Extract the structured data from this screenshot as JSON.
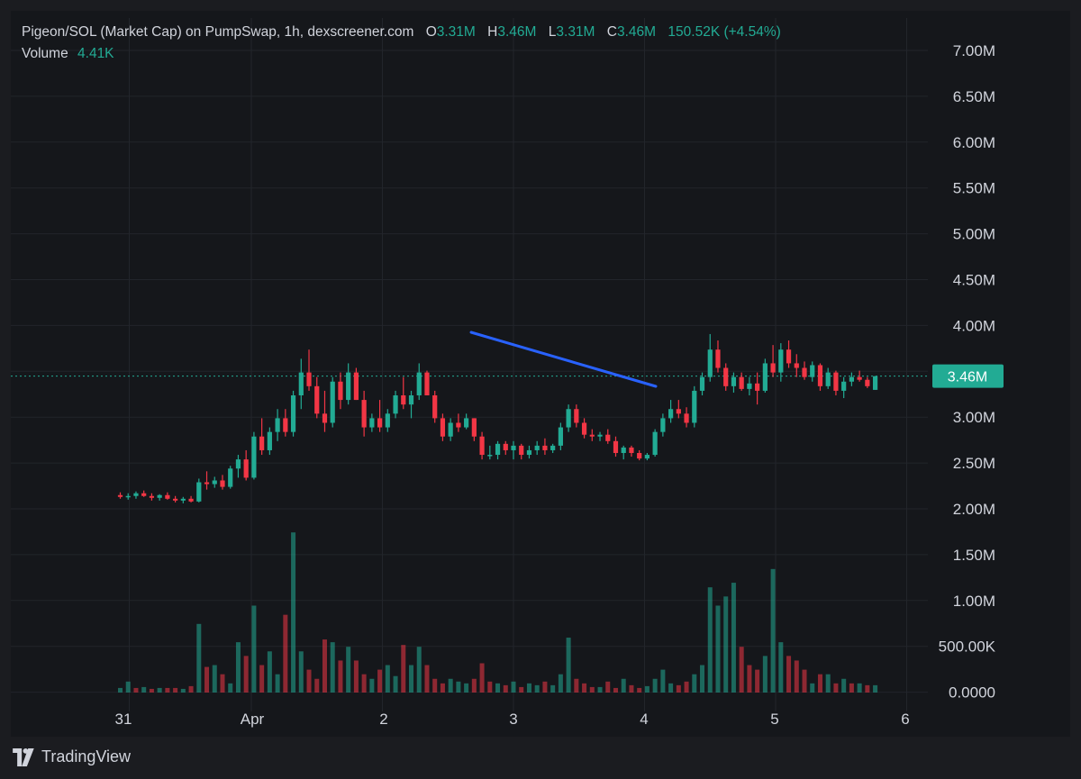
{
  "header": {
    "title": "Pigeon/SOL (Market Cap) on PumpSwap, 1h, dexscreener.com",
    "open_label": "O",
    "open_value": "3.31M",
    "high_label": "H",
    "high_value": "3.46M",
    "low_label": "L",
    "low_value": "3.31M",
    "close_label": "C",
    "close_value": "3.46M",
    "change": "150.52K (+4.54%)",
    "volume_label": "Volume",
    "volume_value": "4.41K"
  },
  "colors": {
    "up": "#22ab94",
    "down": "#f23645",
    "trendline": "#2962ff",
    "background": "#15171b"
  },
  "price_badge": "3.46M",
  "brand": {
    "name": "TradingView",
    "icon": "tradingview-logo-icon"
  },
  "chart_data": {
    "type": "candlestick",
    "title": "Pigeon/SOL (Market Cap) on PumpSwap, 1h, dexscreener.com",
    "price_axis": {
      "ticks": [
        "7.00M",
        "6.50M",
        "6.00M",
        "5.50M",
        "5.00M",
        "4.50M",
        "4.00M",
        "3.50M",
        "3.00M",
        "2.50M",
        "2.00M",
        "1.50M",
        "1.00M",
        "500.00K",
        "0.0000"
      ],
      "price_range_millions": [
        2.0,
        7.0
      ]
    },
    "time_axis": {
      "ticks": [
        "31",
        "Apr",
        "2",
        "3",
        "4",
        "5",
        "6"
      ],
      "range_days": [
        -1.2,
        6.5
      ]
    },
    "last_price_millions": 3.46,
    "trendline": {
      "from": {
        "t": 2.68,
        "price": 3.92
      },
      "to": {
        "t": 4.1,
        "price": 3.33
      }
    },
    "volume_ylim_millions": [
      0,
      3.5
    ],
    "candles": [
      [
        -1.0,
        2.16,
        2.19,
        2.12,
        2.14
      ],
      [
        -0.94,
        2.14,
        2.18,
        2.11,
        2.15
      ],
      [
        -0.88,
        2.15,
        2.2,
        2.12,
        2.18
      ],
      [
        -0.82,
        2.18,
        2.21,
        2.14,
        2.15
      ],
      [
        -0.76,
        2.15,
        2.18,
        2.1,
        2.13
      ],
      [
        -0.7,
        2.13,
        2.17,
        2.1,
        2.16
      ],
      [
        -0.64,
        2.16,
        2.19,
        2.11,
        2.12
      ],
      [
        -0.58,
        2.12,
        2.15,
        2.08,
        2.1
      ],
      [
        -0.52,
        2.1,
        2.14,
        2.07,
        2.12
      ],
      [
        -0.46,
        2.12,
        2.15,
        2.08,
        2.09
      ],
      [
        -0.4,
        2.09,
        2.34,
        2.08,
        2.3
      ],
      [
        -0.34,
        2.3,
        2.42,
        2.22,
        2.28
      ],
      [
        -0.28,
        2.28,
        2.36,
        2.24,
        2.32
      ],
      [
        -0.22,
        2.32,
        2.38,
        2.22,
        2.25
      ],
      [
        -0.16,
        2.25,
        2.48,
        2.23,
        2.45
      ],
      [
        -0.1,
        2.45,
        2.6,
        2.35,
        2.55
      ],
      [
        -0.04,
        2.55,
        2.65,
        2.32,
        2.35
      ],
      [
        0.02,
        2.35,
        2.85,
        2.33,
        2.8
      ],
      [
        0.08,
        2.8,
        3.0,
        2.6,
        2.65
      ],
      [
        0.14,
        2.65,
        2.9,
        2.6,
        2.85
      ],
      [
        0.2,
        2.85,
        3.1,
        2.75,
        3.0
      ],
      [
        0.26,
        3.0,
        3.1,
        2.8,
        2.85
      ],
      [
        0.32,
        2.85,
        3.3,
        2.8,
        3.25
      ],
      [
        0.38,
        3.25,
        3.65,
        3.1,
        3.5
      ],
      [
        0.44,
        3.5,
        3.75,
        3.3,
        3.35
      ],
      [
        0.5,
        3.35,
        3.45,
        3.0,
        3.05
      ],
      [
        0.56,
        3.05,
        3.3,
        2.85,
        2.95
      ],
      [
        0.62,
        2.95,
        3.45,
        2.9,
        3.4
      ],
      [
        0.68,
        3.4,
        3.5,
        3.1,
        3.2
      ],
      [
        0.74,
        3.2,
        3.6,
        3.15,
        3.5
      ],
      [
        0.8,
        3.5,
        3.55,
        3.2,
        3.2
      ],
      [
        0.86,
        3.2,
        3.3,
        2.8,
        2.9
      ],
      [
        0.92,
        2.9,
        3.05,
        2.85,
        3.0
      ],
      [
        0.98,
        3.0,
        3.2,
        2.85,
        2.9
      ],
      [
        1.04,
        2.9,
        3.1,
        2.85,
        3.05
      ],
      [
        1.1,
        3.05,
        3.3,
        3.0,
        3.25
      ],
      [
        1.16,
        3.25,
        3.45,
        3.1,
        3.15
      ],
      [
        1.22,
        3.15,
        3.3,
        3.0,
        3.25
      ],
      [
        1.28,
        3.25,
        3.6,
        3.2,
        3.5
      ],
      [
        1.34,
        3.5,
        3.52,
        3.25,
        3.25
      ],
      [
        1.4,
        3.25,
        3.3,
        2.95,
        3.0
      ],
      [
        1.46,
        3.0,
        3.05,
        2.75,
        2.8
      ],
      [
        1.52,
        2.8,
        3.0,
        2.75,
        2.95
      ],
      [
        1.58,
        2.95,
        3.05,
        2.85,
        2.9
      ],
      [
        1.64,
        2.9,
        3.05,
        2.88,
        3.0
      ],
      [
        1.7,
        3.0,
        3.0,
        2.75,
        2.8
      ],
      [
        1.76,
        2.8,
        2.85,
        2.55,
        2.6
      ],
      [
        1.82,
        2.6,
        2.7,
        2.55,
        2.6
      ],
      [
        1.88,
        2.6,
        2.75,
        2.55,
        2.72
      ],
      [
        1.94,
        2.72,
        2.75,
        2.6,
        2.65
      ],
      [
        2.0,
        2.65,
        2.75,
        2.55,
        2.7
      ],
      [
        2.06,
        2.7,
        2.72,
        2.55,
        2.6
      ],
      [
        2.12,
        2.6,
        2.7,
        2.56,
        2.65
      ],
      [
        2.18,
        2.65,
        2.75,
        2.6,
        2.7
      ],
      [
        2.24,
        2.7,
        2.78,
        2.6,
        2.65
      ],
      [
        2.3,
        2.65,
        2.72,
        2.62,
        2.7
      ],
      [
        2.36,
        2.7,
        2.95,
        2.65,
        2.9
      ],
      [
        2.42,
        2.9,
        3.15,
        2.85,
        3.1
      ],
      [
        2.48,
        3.1,
        3.15,
        2.9,
        2.95
      ],
      [
        2.54,
        2.95,
        3.0,
        2.78,
        2.82
      ],
      [
        2.6,
        2.82,
        2.88,
        2.75,
        2.8
      ],
      [
        2.66,
        2.8,
        2.85,
        2.75,
        2.82
      ],
      [
        2.72,
        2.82,
        2.88,
        2.72,
        2.75
      ],
      [
        2.78,
        2.75,
        2.8,
        2.58,
        2.62
      ],
      [
        2.84,
        2.62,
        2.7,
        2.55,
        2.68
      ],
      [
        2.9,
        2.68,
        2.7,
        2.58,
        2.62
      ],
      [
        2.96,
        2.62,
        2.65,
        2.54,
        2.56
      ],
      [
        3.02,
        2.56,
        2.62,
        2.54,
        2.6
      ],
      [
        3.08,
        2.6,
        2.88,
        2.58,
        2.85
      ],
      [
        3.14,
        2.85,
        3.05,
        2.8,
        3.0
      ],
      [
        3.2,
        3.0,
        3.2,
        2.95,
        3.1
      ],
      [
        3.26,
        3.1,
        3.2,
        3.0,
        3.05
      ],
      [
        3.32,
        3.05,
        3.12,
        2.9,
        2.95
      ],
      [
        3.38,
        2.95,
        3.35,
        2.9,
        3.3
      ],
      [
        3.44,
        3.3,
        3.5,
        3.25,
        3.45
      ],
      [
        3.5,
        3.45,
        3.92,
        3.4,
        3.75
      ],
      [
        3.56,
        3.75,
        3.85,
        3.5,
        3.55
      ],
      [
        3.62,
        3.55,
        3.6,
        3.3,
        3.35
      ],
      [
        3.68,
        3.35,
        3.5,
        3.28,
        3.45
      ],
      [
        3.74,
        3.45,
        3.5,
        3.3,
        3.32
      ],
      [
        3.8,
        3.32,
        3.45,
        3.25,
        3.38
      ],
      [
        3.86,
        3.38,
        3.5,
        3.15,
        3.3
      ],
      [
        3.92,
        3.3,
        3.65,
        3.28,
        3.6
      ],
      [
        3.98,
        3.6,
        3.8,
        3.45,
        3.5
      ],
      [
        4.04,
        3.5,
        3.82,
        3.4,
        3.75
      ],
      [
        4.1,
        3.75,
        3.85,
        3.55,
        3.6
      ],
      [
        4.16,
        3.6,
        3.7,
        3.45,
        3.55
      ],
      [
        4.22,
        3.55,
        3.62,
        3.42,
        3.45
      ],
      [
        4.28,
        3.45,
        3.62,
        3.4,
        3.58
      ],
      [
        4.34,
        3.58,
        3.6,
        3.3,
        3.35
      ],
      [
        4.4,
        3.35,
        3.55,
        3.32,
        3.5
      ],
      [
        4.46,
        3.5,
        3.52,
        3.25,
        3.3
      ],
      [
        4.52,
        3.3,
        3.45,
        3.22,
        3.4
      ],
      [
        4.58,
        3.4,
        3.5,
        3.35,
        3.45
      ],
      [
        4.64,
        3.45,
        3.52,
        3.4,
        3.42
      ],
      [
        4.7,
        3.42,
        3.45,
        3.33,
        3.35
      ],
      [
        4.76,
        3.31,
        3.46,
        3.31,
        3.46
      ]
    ],
    "volumes": [
      [
        -1.0,
        0.05,
        "up"
      ],
      [
        -0.94,
        0.12,
        "up"
      ],
      [
        -0.88,
        0.05,
        "down"
      ],
      [
        -0.82,
        0.06,
        "up"
      ],
      [
        -0.76,
        0.04,
        "down"
      ],
      [
        -0.7,
        0.05,
        "up"
      ],
      [
        -0.64,
        0.05,
        "down"
      ],
      [
        -0.58,
        0.05,
        "down"
      ],
      [
        -0.52,
        0.04,
        "up"
      ],
      [
        -0.46,
        0.07,
        "down"
      ],
      [
        -0.4,
        0.75,
        "up"
      ],
      [
        -0.34,
        0.28,
        "down"
      ],
      [
        -0.28,
        0.3,
        "up"
      ],
      [
        -0.22,
        0.2,
        "down"
      ],
      [
        -0.16,
        0.1,
        "up"
      ],
      [
        -0.1,
        0.55,
        "up"
      ],
      [
        -0.04,
        0.4,
        "down"
      ],
      [
        0.02,
        0.95,
        "up"
      ],
      [
        0.08,
        0.3,
        "down"
      ],
      [
        0.14,
        0.45,
        "up"
      ],
      [
        0.2,
        0.2,
        "up"
      ],
      [
        0.26,
        0.85,
        "down"
      ],
      [
        0.32,
        1.75,
        "up"
      ],
      [
        0.38,
        0.45,
        "up"
      ],
      [
        0.44,
        0.25,
        "down"
      ],
      [
        0.5,
        0.15,
        "down"
      ],
      [
        0.56,
        0.58,
        "down"
      ],
      [
        0.62,
        0.55,
        "up"
      ],
      [
        0.68,
        0.35,
        "down"
      ],
      [
        0.74,
        0.5,
        "up"
      ],
      [
        0.8,
        0.35,
        "down"
      ],
      [
        0.86,
        0.2,
        "down"
      ],
      [
        0.92,
        0.15,
        "up"
      ],
      [
        0.98,
        0.25,
        "down"
      ],
      [
        1.04,
        0.3,
        "up"
      ],
      [
        1.1,
        0.18,
        "up"
      ],
      [
        1.16,
        0.52,
        "down"
      ],
      [
        1.22,
        0.3,
        "up"
      ],
      [
        1.28,
        0.5,
        "up"
      ],
      [
        1.34,
        0.3,
        "down"
      ],
      [
        1.4,
        0.15,
        "down"
      ],
      [
        1.46,
        0.1,
        "down"
      ],
      [
        1.52,
        0.15,
        "up"
      ],
      [
        1.58,
        0.12,
        "up"
      ],
      [
        1.64,
        0.1,
        "up"
      ],
      [
        1.7,
        0.15,
        "down"
      ],
      [
        1.76,
        0.32,
        "down"
      ],
      [
        1.82,
        0.12,
        "down"
      ],
      [
        1.88,
        0.1,
        "up"
      ],
      [
        1.94,
        0.08,
        "down"
      ],
      [
        2.0,
        0.12,
        "up"
      ],
      [
        2.06,
        0.06,
        "down"
      ],
      [
        2.12,
        0.1,
        "up"
      ],
      [
        2.18,
        0.08,
        "up"
      ],
      [
        2.24,
        0.12,
        "down"
      ],
      [
        2.3,
        0.08,
        "up"
      ],
      [
        2.36,
        0.2,
        "up"
      ],
      [
        2.42,
        0.6,
        "up"
      ],
      [
        2.48,
        0.15,
        "down"
      ],
      [
        2.54,
        0.1,
        "down"
      ],
      [
        2.6,
        0.06,
        "down"
      ],
      [
        2.66,
        0.06,
        "up"
      ],
      [
        2.72,
        0.12,
        "down"
      ],
      [
        2.78,
        0.05,
        "down"
      ],
      [
        2.84,
        0.15,
        "up"
      ],
      [
        2.9,
        0.08,
        "down"
      ],
      [
        2.96,
        0.05,
        "down"
      ],
      [
        3.02,
        0.07,
        "up"
      ],
      [
        3.08,
        0.15,
        "up"
      ],
      [
        3.14,
        0.25,
        "up"
      ],
      [
        3.2,
        0.1,
        "up"
      ],
      [
        3.26,
        0.08,
        "down"
      ],
      [
        3.32,
        0.12,
        "down"
      ],
      [
        3.38,
        0.2,
        "up"
      ],
      [
        3.44,
        0.3,
        "up"
      ],
      [
        3.5,
        1.15,
        "up"
      ],
      [
        3.56,
        0.95,
        "up"
      ],
      [
        3.62,
        1.05,
        "up"
      ],
      [
        3.68,
        1.2,
        "up"
      ],
      [
        3.74,
        0.5,
        "down"
      ],
      [
        3.8,
        0.3,
        "down"
      ],
      [
        3.86,
        0.25,
        "down"
      ],
      [
        3.92,
        0.4,
        "up"
      ],
      [
        3.98,
        1.35,
        "up"
      ],
      [
        4.04,
        0.55,
        "up"
      ],
      [
        4.1,
        0.4,
        "down"
      ],
      [
        4.16,
        0.35,
        "down"
      ],
      [
        4.22,
        0.25,
        "down"
      ],
      [
        4.28,
        0.1,
        "up"
      ],
      [
        4.34,
        0.2,
        "down"
      ],
      [
        4.4,
        0.2,
        "up"
      ],
      [
        4.46,
        0.1,
        "down"
      ],
      [
        4.52,
        0.15,
        "up"
      ],
      [
        4.58,
        0.1,
        "down"
      ],
      [
        4.64,
        0.1,
        "up"
      ],
      [
        4.7,
        0.08,
        "down"
      ],
      [
        4.76,
        0.08,
        "up"
      ]
    ]
  }
}
